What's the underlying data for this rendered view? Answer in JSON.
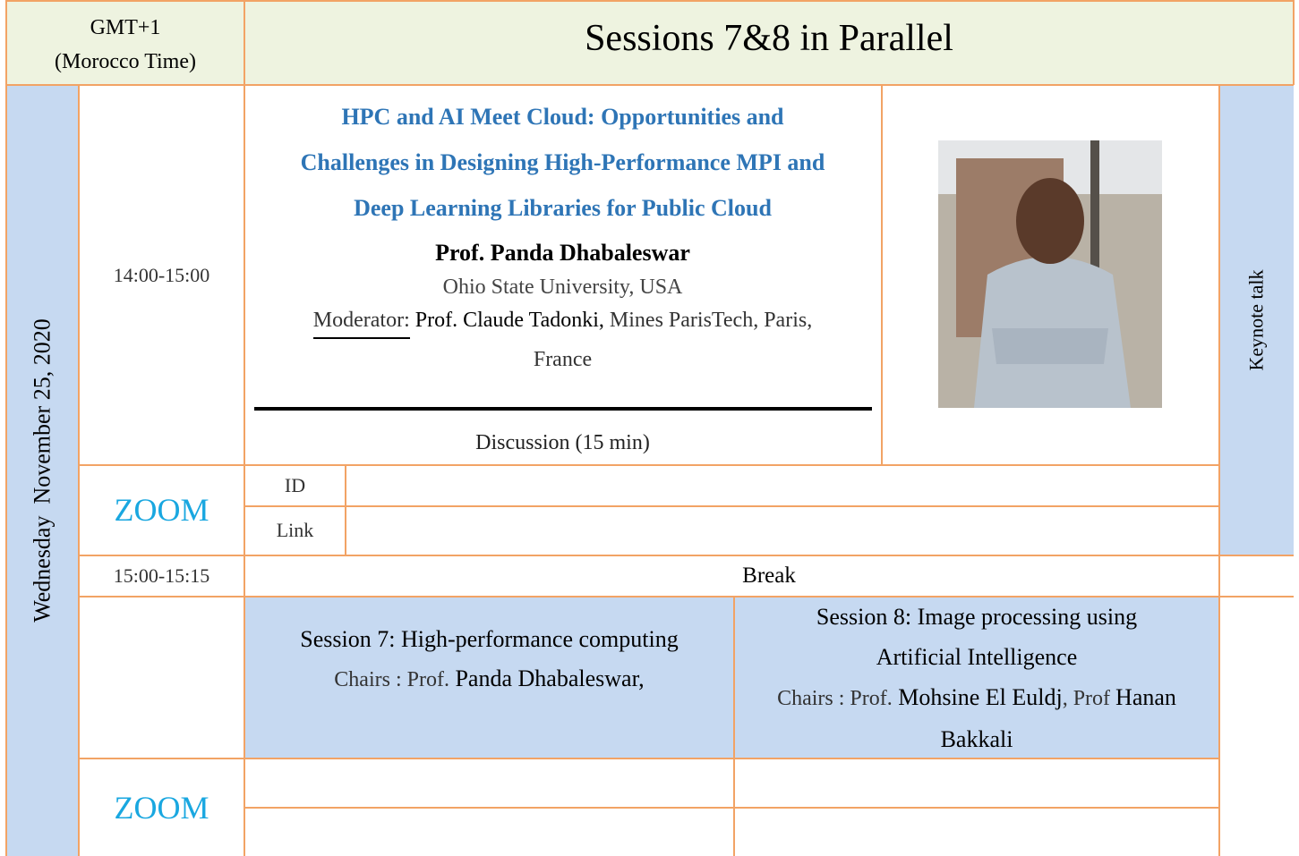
{
  "header": {
    "timezone": [
      "GMT+1",
      "(Morocco Time)"
    ],
    "title": "Sessions 7&8 in Parallel"
  },
  "day": "Wednesday  November 25, 2020",
  "keynote": {
    "time": "14:00-15:00",
    "title_lines": [
      "HPC and AI Meet Cloud: Opportunities and",
      "Challenges in Designing High-Performance MPI and",
      "Deep Learning Libraries for Public Cloud"
    ],
    "speaker": "Prof. Panda Dhabaleswar",
    "affiliation": "Ohio State University, USA",
    "moderator_label": "Moderator:",
    "moderator": "Prof. Claude Tadonki,",
    "moderator_affiliation": "Mines ParisTech, Paris,",
    "moderator_country": "France",
    "discussion": "Discussion (15 min)",
    "side_label": "Keynote talk"
  },
  "zoom1": {
    "label": "ZOOM",
    "id_label": "ID",
    "link_label": "Link"
  },
  "break": {
    "time": "15:00-15:15",
    "label": "Break"
  },
  "sessions": [
    {
      "title_lines": [
        "Session 7:  High-performance computing"
      ],
      "chairs_label": "Chairs : Prof.",
      "chairs": [
        "Panda Dhabaleswar,"
      ]
    },
    {
      "title_lines": [
        "Session 8:  Image processing  using",
        "Artificial Intelligence"
      ],
      "chairs_label": "Chairs : Prof.",
      "chairs": [
        "Mohsine El Euldj",
        ", Prof ",
        "Hanan Bakkali"
      ]
    }
  ],
  "zoom2": {
    "label": "ZOOM"
  }
}
